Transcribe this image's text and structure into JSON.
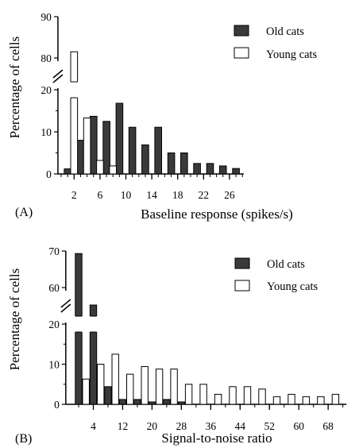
{
  "chart_data": [
    {
      "type": "bar",
      "panel_label": "(A)",
      "xlabel": "Baseline response (spikes/s)",
      "ylabel": "Percentage of cells",
      "axis_break": {
        "lower": [
          0,
          20
        ],
        "upper": [
          80,
          90
        ]
      },
      "y_ticks": [
        0,
        10,
        20,
        80,
        90
      ],
      "x_tick_labels": [
        "2",
        "6",
        "10",
        "14",
        "18",
        "22",
        "26"
      ],
      "legend": {
        "position": "top-right"
      },
      "series": [
        {
          "name": "Old cats",
          "fill": "#3a3a3a",
          "x": [
            1,
            3,
            5,
            7,
            9,
            11,
            13,
            15,
            17,
            19,
            21,
            23,
            25,
            27
          ],
          "values": [
            1.2,
            8,
            13.7,
            12.5,
            16.8,
            11.1,
            6.9,
            11.1,
            5,
            5,
            2.5,
            2.5,
            1.9,
            1.3
          ]
        },
        {
          "name": "Young cats",
          "fill": "#ffffff",
          "x": [
            2,
            4,
            6,
            8
          ],
          "values": [
            81.5,
            13.3,
            3.2,
            1.9
          ]
        }
      ]
    },
    {
      "type": "bar",
      "panel_label": "(B)",
      "xlabel": "Signal-to-noise ratio",
      "ylabel": "Percentage of cells",
      "axis_break": {
        "lower": [
          0,
          20
        ],
        "upper": [
          60,
          70
        ]
      },
      "y_ticks": [
        0,
        10,
        20,
        60,
        70
      ],
      "x_tick_labels": [
        "4",
        "12",
        "20",
        "28",
        "36",
        "44",
        "52",
        "60",
        "68"
      ],
      "legend": {
        "position": "top-right"
      },
      "series": [
        {
          "name": "Old cats",
          "fill": "#3a3a3a",
          "x": [
            0,
            4,
            8,
            12,
            16,
            20,
            24,
            28
          ],
          "values": [
            69.3,
            21.3,
            4.4,
            1.2,
            1.2,
            0.6,
            1.2,
            0.6
          ]
        },
        {
          "name": "Young cats",
          "fill": "#ffffff",
          "x": [
            2,
            6,
            10,
            14,
            18,
            22,
            26,
            30,
            34,
            38,
            42,
            46,
            50,
            54,
            58,
            62,
            66,
            70
          ],
          "values": [
            6.3,
            10,
            12.5,
            7.5,
            9.4,
            8.8,
            8.8,
            5,
            5,
            2.5,
            4.4,
            4.4,
            3.8,
            1.9,
            2.5,
            1.9,
            1.9,
            2.5
          ]
        }
      ]
    }
  ]
}
